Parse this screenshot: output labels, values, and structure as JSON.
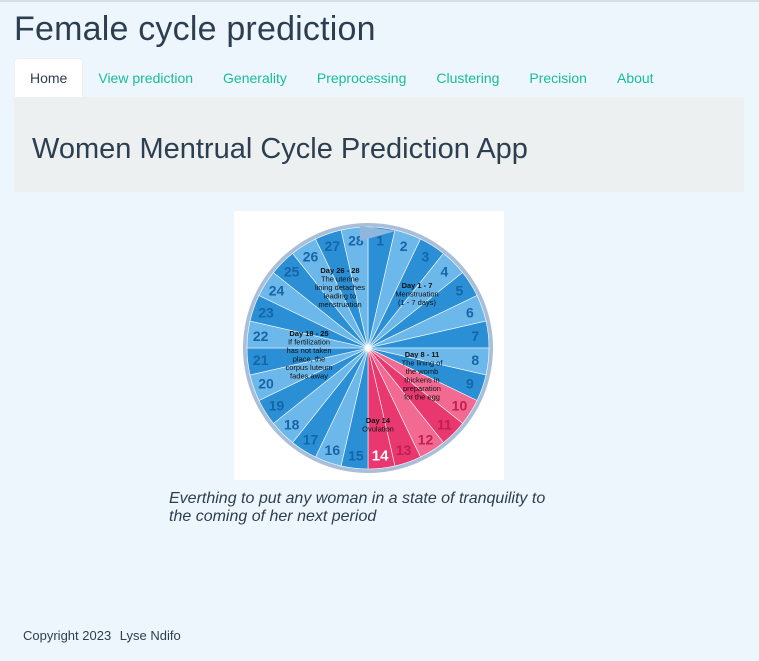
{
  "app": {
    "title": "Female cycle prediction"
  },
  "nav": {
    "tabs": [
      {
        "label": "Home",
        "active": true
      },
      {
        "label": "View prediction",
        "active": false
      },
      {
        "label": "Generality",
        "active": false
      },
      {
        "label": "Preprocessing",
        "active": false
      },
      {
        "label": "Clustering",
        "active": false
      },
      {
        "label": "Precision",
        "active": false
      },
      {
        "label": "About",
        "active": false
      }
    ]
  },
  "hero": {
    "heading": "Women Mentrual Cycle Prediction App"
  },
  "wheel": {
    "days": [
      "1",
      "2",
      "3",
      "4",
      "5",
      "6",
      "7",
      "8",
      "9",
      "10",
      "11",
      "12",
      "13",
      "14",
      "15",
      "16",
      "17",
      "18",
      "19",
      "20",
      "21",
      "22",
      "23",
      "24",
      "25",
      "26",
      "27",
      "28"
    ],
    "phases": [
      {
        "title": "Day 1 - 7",
        "lines": [
          "Menstruation",
          "(1 - 7 days)"
        ]
      },
      {
        "title": "Day 8 - 11",
        "lines": [
          "The lining of",
          "the womb",
          "thickens in",
          "preparation",
          "for the egg"
        ]
      },
      {
        "title": "Day 14",
        "lines": [
          "Ovulation"
        ]
      },
      {
        "title": "Day 18 - 25",
        "lines": [
          "If fertilization",
          "has not taken",
          "place, the",
          "corpus luteum",
          "fades away"
        ]
      },
      {
        "title": "Day 26 - 28",
        "lines": [
          "The uterine",
          "lining detaches",
          "leading to",
          "menstruation"
        ]
      }
    ],
    "colors": {
      "blue": "#2b8fd6",
      "blue_light": "#6db8ea",
      "pink": "#e8386f",
      "pink_light": "#f26a92",
      "rim": "#a9bfd9"
    }
  },
  "caption": "Everthing to put any woman in a state of tranquility to the coming of her next period",
  "footer": {
    "copyright": "Copyright 2023",
    "author": "Lyse Ndifo"
  }
}
